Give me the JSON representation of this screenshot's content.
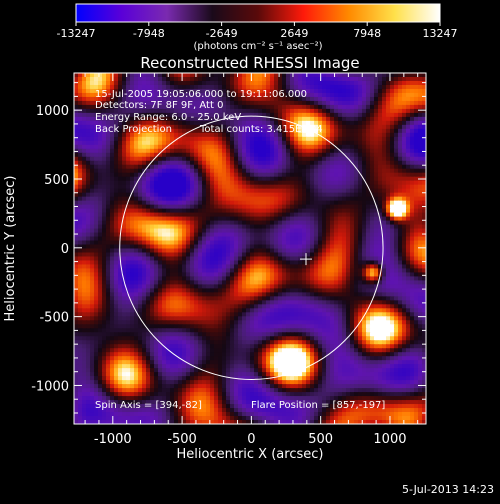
{
  "chart_data": {
    "type": "heatmap",
    "title": "Reconstructed RHESSI Image",
    "xlabel": "Heliocentric X (arcsec)",
    "ylabel": "Heliocentric Y (arcsec)",
    "xlim": [
      -1280,
      1260
    ],
    "ylim": [
      -1280,
      1270
    ],
    "x_ticks": [
      -1000,
      -500,
      0,
      500,
      1000
    ],
    "y_ticks": [
      -1000,
      -500,
      0,
      500,
      1000
    ],
    "colorbar": {
      "min": -13247,
      "max": 13247,
      "ticks": [
        "-13247",
        "-7948",
        "-2649",
        "2649",
        "7948",
        "13247"
      ],
      "unit_label": "(photons cm⁻² s⁻¹ asec⁻²)",
      "stops": [
        "#0000ff",
        "#5a00d8",
        "#7a2ab0",
        "#1a0a1a",
        "#5a0a0a",
        "#ff1a0a",
        "#ff8a00",
        "#ffe04a",
        "#ffffff"
      ]
    },
    "annotations": {
      "time": "15-Jul-2005 19:05:06.000 to 19:11:06.000",
      "detectors": "Detectors: 7F 8F 9F, Att 0",
      "energy": "Energy Range: 6.0 - 25.0 keV",
      "method": "Back Projection",
      "counts": "Total counts: 3.415E+04",
      "spin_axis": "Spin Axis = [394,-82]",
      "flare_position": "Flare Position = [857,-197]"
    },
    "solar_limb": {
      "center": [
        0,
        0
      ],
      "radius": 950
    },
    "marker": {
      "x": 394,
      "y": -82
    },
    "sources": [
      {
        "x": 1050,
        "y": 280,
        "intensity": 13247
      },
      {
        "x": 880,
        "y": -180,
        "intensity": 12000
      }
    ]
  },
  "footer": {
    "date": "5-Jul-2013 14:23"
  }
}
